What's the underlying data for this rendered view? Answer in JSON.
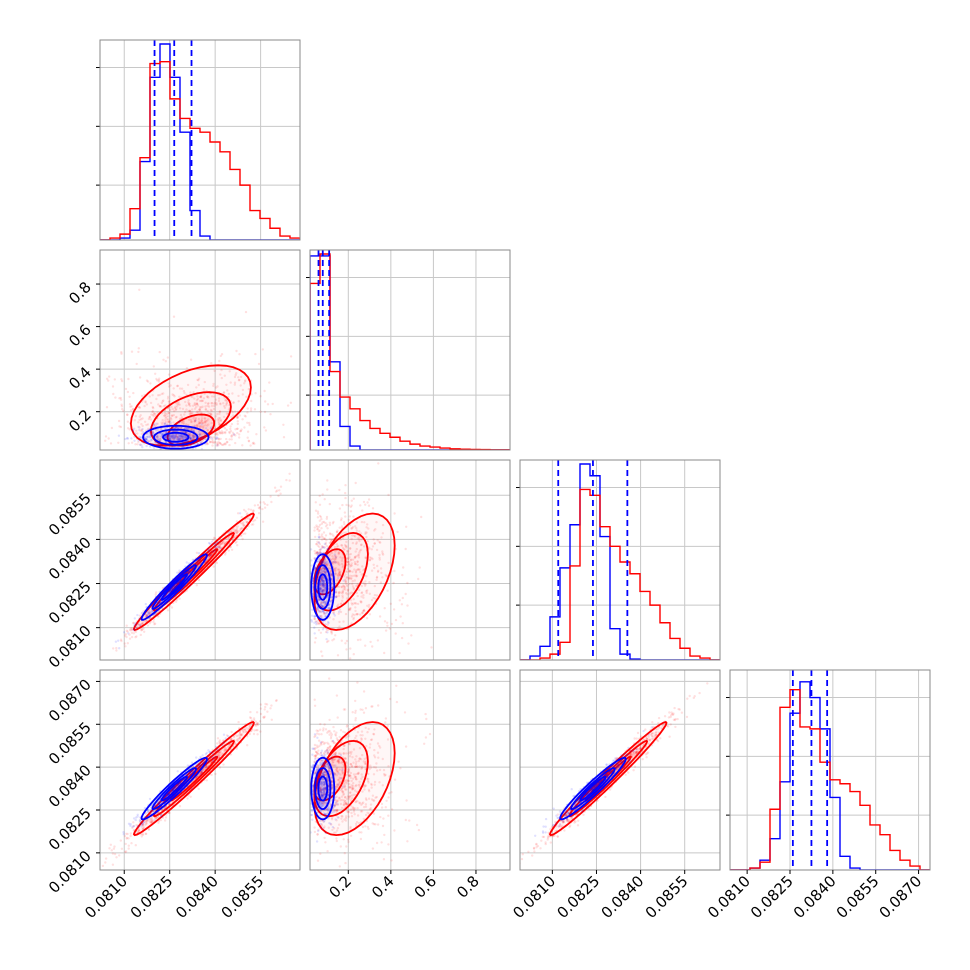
{
  "chart_data": {
    "type": "corner",
    "grid": true,
    "series": [
      {
        "color": "#0000ff"
      },
      {
        "color": "#ff0000"
      }
    ],
    "parameters": [
      {
        "range": [
          0.0802,
          0.0868
        ],
        "ticks": [
          0.081,
          0.0825,
          0.084,
          0.0855
        ],
        "tick_labels": [
          "0.0810",
          "0.0825",
          "0.0840",
          "0.0855"
        ]
      },
      {
        "range": [
          0.02,
          0.96
        ],
        "ticks": [
          0.2,
          0.4,
          0.6,
          0.8
        ],
        "tick_labels": [
          "0.2",
          "0.4",
          "0.6",
          "0.8"
        ]
      },
      {
        "range": [
          0.0799,
          0.0867
        ],
        "ticks": [
          0.081,
          0.0825,
          0.084,
          0.0855
        ],
        "tick_labels": [
          "0.0810",
          "0.0825",
          "0.0840",
          "0.0855"
        ]
      },
      {
        "range": [
          0.0804,
          0.0874
        ],
        "ticks": [
          0.081,
          0.0825,
          0.084,
          0.0855,
          0.087
        ],
        "tick_labels": [
          "0.0810",
          "0.0825",
          "0.0840",
          "0.0855",
          "0.0870"
        ]
      }
    ],
    "quantile_lines": [
      [
        0.082,
        0.08265,
        0.08322
      ],
      [
        0.06,
        0.08,
        0.11
      ],
      [
        0.0812,
        0.08238,
        0.08355
      ],
      [
        0.0826,
        0.08325,
        0.0838
      ]
    ],
    "histograms": [
      {
        "edges": [
          0.0802,
          0.0868
        ],
        "blue": [
          0,
          0,
          0.01,
          0.05,
          0.4,
          0.83,
          1.0,
          0.83,
          0.55,
          0.15,
          0.02,
          0,
          0,
          0,
          0,
          0,
          0,
          0,
          0,
          0
        ],
        "red": [
          0,
          0.01,
          0.03,
          0.16,
          0.42,
          0.9,
          0.91,
          0.72,
          0.62,
          0.57,
          0.55,
          0.5,
          0.45,
          0.36,
          0.28,
          0.15,
          0.11,
          0.06,
          0.02,
          0.01
        ]
      },
      {
        "edges": [
          0.02,
          0.96
        ],
        "blue": [
          0.99,
          0.99,
          0.45,
          0.12,
          0.02,
          0,
          0,
          0,
          0,
          0,
          0,
          0,
          0,
          0,
          0,
          0,
          0,
          0,
          0,
          0
        ],
        "red": [
          0.85,
          1.0,
          0.4,
          0.27,
          0.21,
          0.15,
          0.11,
          0.085,
          0.065,
          0.045,
          0.03,
          0.02,
          0.015,
          0.01,
          0.006,
          0.004,
          0.003,
          0.002,
          0.001,
          0.001
        ]
      },
      {
        "edges": [
          0.0799,
          0.0867
        ],
        "blue": [
          0,
          0.02,
          0.07,
          0.22,
          0.47,
          0.69,
          1.0,
          0.94,
          0.63,
          0.16,
          0.03,
          0.005,
          0,
          0,
          0,
          0,
          0,
          0,
          0,
          0
        ],
        "red": [
          0,
          0,
          0.01,
          0.03,
          0.09,
          0.48,
          0.87,
          0.84,
          0.68,
          0.58,
          0.5,
          0.44,
          0.35,
          0.28,
          0.19,
          0.11,
          0.06,
          0.02,
          0.01,
          0
        ]
      },
      {
        "edges": [
          0.0804,
          0.0874
        ],
        "blue": [
          0,
          0,
          0.01,
          0.05,
          0.16,
          0.45,
          0.8,
          0.96,
          0.88,
          0.72,
          0.37,
          0.07,
          0.01,
          0,
          0,
          0,
          0,
          0,
          0,
          0
        ],
        "red": [
          0,
          0,
          0.01,
          0.04,
          0.31,
          0.83,
          0.92,
          0.73,
          0.72,
          0.55,
          0.46,
          0.44,
          0.4,
          0.33,
          0.23,
          0.18,
          0.1,
          0.05,
          0.02,
          0
        ]
      }
    ],
    "pairs": {
      "1-0": {
        "blue": {
          "mx": 0.0827,
          "my": 0.08,
          "sx": 0.0006,
          "sy": 0.03,
          "rho": 0.0
        },
        "red": {
          "mx": 0.0832,
          "my": 0.2,
          "sx": 0.0011,
          "sy": 0.15,
          "rho": 0.45,
          "skew_y": true
        }
      },
      "2-0": {
        "blue": {
          "mx": 0.08265,
          "my": 0.08238,
          "sx": 0.0006,
          "sy": 0.00062,
          "rho": 0.97
        },
        "red": {
          "mx": 0.0833,
          "my": 0.0829,
          "sx": 0.0011,
          "sy": 0.0011,
          "rho": 0.985
        }
      },
      "2-1": {
        "blue": {
          "mx": 0.08,
          "my": 0.08238,
          "sx": 0.03,
          "sy": 0.00062,
          "rho": 0.0
        },
        "red": {
          "mx": 0.2,
          "my": 0.0829,
          "sx": 0.15,
          "sy": 0.0011,
          "rho": 0.45,
          "skew_x": true
        }
      },
      "3-0": {
        "blue": {
          "mx": 0.08265,
          "my": 0.08325,
          "sx": 0.0006,
          "sy": 0.0006,
          "rho": 0.96
        },
        "red": {
          "mx": 0.0833,
          "my": 0.0836,
          "sx": 0.0011,
          "sy": 0.0011,
          "rho": 0.985
        }
      },
      "3-1": {
        "blue": {
          "mx": 0.08,
          "my": 0.08325,
          "sx": 0.03,
          "sy": 0.0006,
          "rho": 0.0
        },
        "red": {
          "mx": 0.2,
          "my": 0.0836,
          "sx": 0.15,
          "sy": 0.0011,
          "rho": 0.45,
          "skew_x": true
        }
      },
      "3-2": {
        "blue": {
          "mx": 0.08238,
          "my": 0.08325,
          "sx": 0.00062,
          "sy": 0.0006,
          "rho": 0.96
        },
        "red": {
          "mx": 0.0829,
          "my": 0.0836,
          "sx": 0.0011,
          "sy": 0.0011,
          "rho": 0.985
        }
      }
    }
  }
}
